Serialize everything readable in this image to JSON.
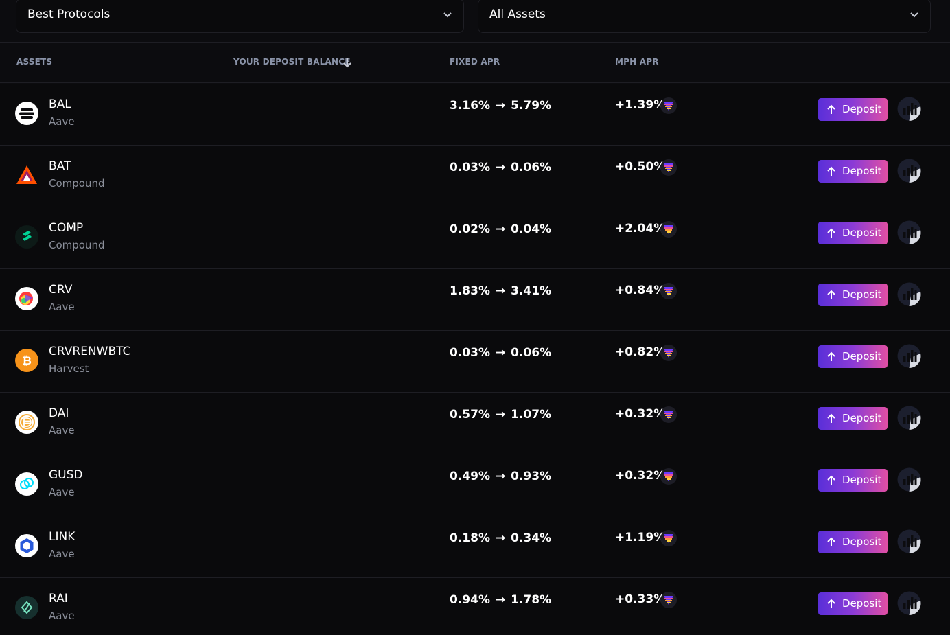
{
  "filters": {
    "protocol_select": "Best Protocols",
    "asset_select": "All Assets"
  },
  "table": {
    "headers": {
      "assets": "ASSETS",
      "deposit_balance": "YOUR DEPOSIT BALANCE",
      "fixed_apr": "FIXED APR",
      "mph_apr": "MPH APR"
    },
    "deposit_label": "Deposit",
    "arrow_glyph": "→",
    "rows": [
      {
        "name": "BAL",
        "protocol": "Aave",
        "apr_from": "3.16%",
        "apr_to": "5.79%",
        "mph": "+1.39%",
        "icon": "balancer-icon"
      },
      {
        "name": "BAT",
        "protocol": "Compound",
        "apr_from": "0.03%",
        "apr_to": "0.06%",
        "mph": "+0.50%",
        "icon": "bat-icon"
      },
      {
        "name": "COMP",
        "protocol": "Compound",
        "apr_from": "0.02%",
        "apr_to": "0.04%",
        "mph": "+2.04%",
        "icon": "compound-icon"
      },
      {
        "name": "CRV",
        "protocol": "Aave",
        "apr_from": "1.83%",
        "apr_to": "3.41%",
        "mph": "+0.84%",
        "icon": "curve-icon"
      },
      {
        "name": "CRVRENWBTC",
        "protocol": "Harvest",
        "apr_from": "0.03%",
        "apr_to": "0.06%",
        "mph": "+0.82%",
        "icon": "bitcoin-icon"
      },
      {
        "name": "DAI",
        "protocol": "Aave",
        "apr_from": "0.57%",
        "apr_to": "1.07%",
        "mph": "+0.32%",
        "icon": "dai-icon"
      },
      {
        "name": "GUSD",
        "protocol": "Aave",
        "apr_from": "0.49%",
        "apr_to": "0.93%",
        "mph": "+0.32%",
        "icon": "gusd-icon"
      },
      {
        "name": "LINK",
        "protocol": "Aave",
        "apr_from": "0.18%",
        "apr_to": "0.34%",
        "mph": "+1.19%",
        "icon": "chainlink-icon"
      },
      {
        "name": "RAI",
        "protocol": "Aave",
        "apr_from": "0.94%",
        "apr_to": "1.78%",
        "mph": "+0.33%",
        "icon": "rai-icon"
      }
    ]
  },
  "colors": {
    "background": "#0c0c0f",
    "header_text": "#8a93a8",
    "deposit_gradient_start": "#5a2fd8",
    "deposit_gradient_end": "#e04fa4"
  }
}
